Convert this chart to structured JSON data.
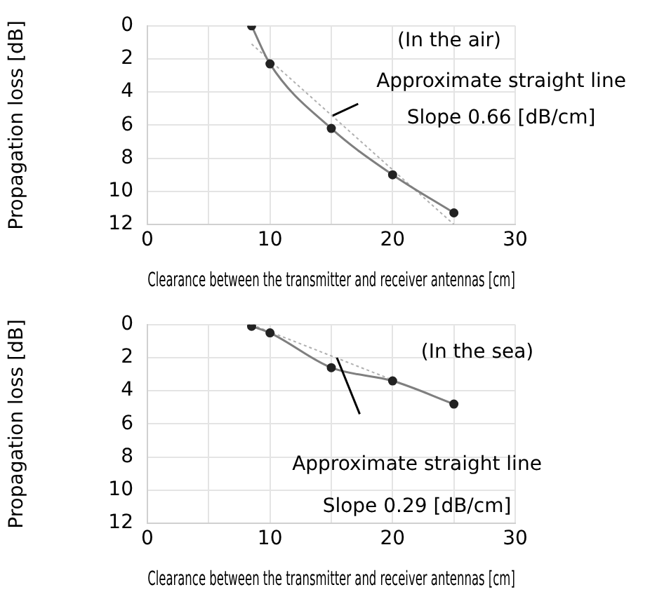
{
  "chart_data": [
    {
      "type": "line",
      "xlabel": "Clearance between the transmitter and receiver antennas [cm]",
      "ylabel": "Propagation loss [dB]",
      "xlim": [
        0,
        30
      ],
      "xticks": [
        0,
        {
          "value": 5,
          "label": null
        },
        10,
        {
          "value": 15,
          "label": null
        },
        20,
        {
          "value": 25,
          "label": null
        },
        30
      ],
      "ylim": [
        12,
        0
      ],
      "yticks": [
        0,
        2,
        4,
        6,
        8,
        10,
        12
      ],
      "grid": true,
      "legend": false,
      "annotations": [
        "(In the air)",
        "Approximate straight line",
        "Slope 0.66 [dB/cm]"
      ],
      "series": [
        {
          "x": [
            8.5,
            10,
            15,
            20,
            25
          ],
          "values": [
            0,
            2.3,
            6.2,
            9.0,
            11.3
          ],
          "color": "#7f7f7f",
          "marker": "circle",
          "line_style": "solid"
        },
        {
          "x": [
            8.5,
            25
          ],
          "values": [
            1.1,
            12.0
          ],
          "color": "#b0b0b0",
          "marker": "none",
          "line_style": "dotted"
        }
      ]
    },
    {
      "type": "line",
      "xlabel": "Clearance between the transmitter and receiver antennas [cm]",
      "ylabel": "Propagation loss [dB]",
      "xlim": [
        0,
        30
      ],
      "xticks": [
        0,
        {
          "value": 5,
          "label": null
        },
        10,
        {
          "value": 15,
          "label": null
        },
        20,
        {
          "value": 25,
          "label": null
        },
        30
      ],
      "ylim": [
        12,
        0
      ],
      "yticks": [
        0,
        2,
        4,
        6,
        8,
        10,
        12
      ],
      "grid": true,
      "legend": false,
      "annotations": [
        "(In the sea)",
        "Approximate straight line",
        "Slope 0.29 [dB/cm]"
      ],
      "series": [
        {
          "x": [
            8.5,
            10,
            15,
            20,
            25
          ],
          "values": [
            0.1,
            0.5,
            2.6,
            3.4,
            4.8
          ],
          "color": "#7f7f7f",
          "marker": "circle",
          "line_style": "solid"
        },
        {
          "x": [
            8.5,
            25
          ],
          "values": [
            0.0,
            4.8
          ],
          "color": "#b0b0b0",
          "marker": "none",
          "line_style": "dotted"
        }
      ]
    }
  ]
}
